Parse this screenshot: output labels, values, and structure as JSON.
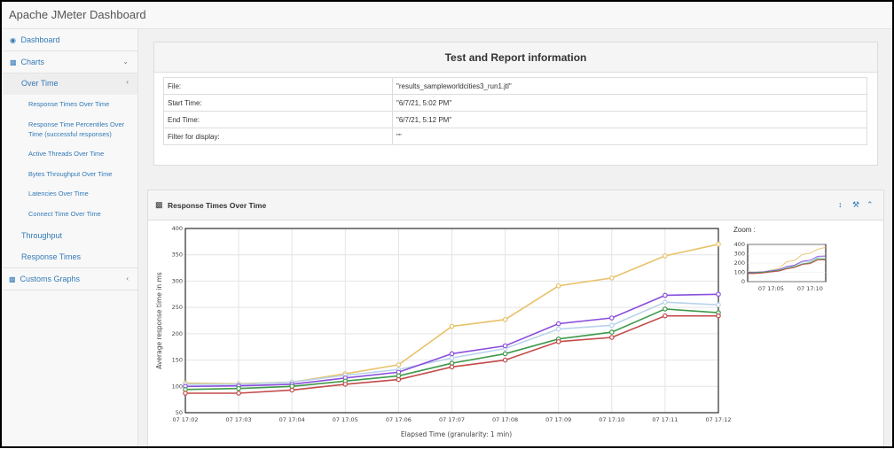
{
  "app": {
    "title": "Apache JMeter Dashboard"
  },
  "sidebar": {
    "dashboard": "Dashboard",
    "charts": "Charts",
    "over_time": "Over Time",
    "over_time_items": [
      "Response Times Over Time",
      "Response Time Percentiles Over Time (successful responses)",
      "Active Threads Over Time",
      "Bytes Throughput Over Time",
      "Latencies Over Time",
      "Connect Time Over Time"
    ],
    "throughput": "Throughput",
    "response_times": "Response Times",
    "customs_graphs": "Customs Graphs"
  },
  "info": {
    "title": "Test and Report information",
    "rows": [
      {
        "key": "File:",
        "value": "\"results_sampleworldcities3_run1.jtl\""
      },
      {
        "key": "Start Time:",
        "value": "\"6/7/21, 5:02 PM\""
      },
      {
        "key": "End Time:",
        "value": "\"6/7/21, 5:12 PM\""
      },
      {
        "key": "Filter for display:",
        "value": "\"\""
      }
    ]
  },
  "chart_panel": {
    "title": "Response Times Over Time",
    "zoom_label": "Zoom :"
  },
  "chart_data": {
    "type": "line",
    "x": [
      "07 17:02",
      "07 17:03",
      "07 17:04",
      "07 17:05",
      "07 17:06",
      "07 17:07",
      "07 17:08",
      "07 17:09",
      "07 17:10",
      "07 17:11",
      "07 17:12"
    ],
    "xlabel": "Elapsed Time (granularity: 1 min)",
    "ylabel": "Average response time in ms",
    "ylim": [
      50,
      400
    ],
    "yticks": [
      50,
      100,
      150,
      200,
      250,
      300,
      350,
      400
    ],
    "grid": true,
    "series": [
      {
        "color": "#e8c26a",
        "values": [
          106,
          105,
          108,
          124,
          141,
          214,
          227,
          291,
          306,
          348,
          370
        ]
      },
      {
        "color": "#b9d3ea",
        "values": [
          104,
          104,
          108,
          121,
          132,
          154,
          172,
          209,
          216,
          260,
          255
        ]
      },
      {
        "color": "#8a4fdc",
        "values": [
          100,
          101,
          104,
          116,
          127,
          162,
          177,
          219,
          230,
          273,
          275
        ]
      },
      {
        "color": "#3e9a4a",
        "values": [
          94,
          96,
          100,
          110,
          120,
          144,
          162,
          190,
          203,
          247,
          240
        ]
      },
      {
        "color": "#c44a4a",
        "values": [
          87,
          87,
          93,
          104,
          113,
          137,
          150,
          185,
          193,
          234,
          234
        ]
      }
    ],
    "zoom": {
      "yticks": [
        0,
        100,
        200,
        300,
        400
      ],
      "xticks": [
        "07 17:05",
        "07 17:10"
      ]
    }
  }
}
